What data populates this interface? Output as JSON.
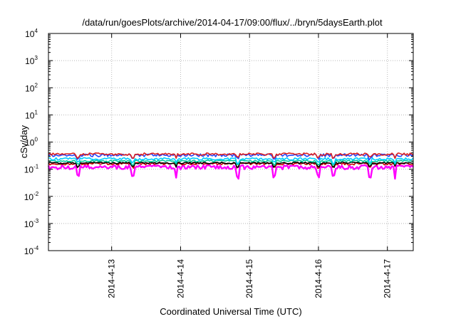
{
  "chart_data": {
    "type": "line",
    "title": "/data/run/goesPlots/archive/2014-04-17/09:00/flux/../bryn/5daysEarth.plot",
    "xlabel": "Coordinated Universal Time (UTC)",
    "ylabel": "cSv/day",
    "y_scale": "log",
    "ylim": [
      0.0001,
      10000
    ],
    "xlim": [
      "2014-04-12T02:00",
      "2014-04-17T09:00"
    ],
    "y_ticks": [
      {
        "base": "10",
        "exp": "-4",
        "value": 0.0001
      },
      {
        "base": "10",
        "exp": "-3",
        "value": 0.001
      },
      {
        "base": "10",
        "exp": "-2",
        "value": 0.01
      },
      {
        "base": "10",
        "exp": "-1",
        "value": 0.1
      },
      {
        "base": "10",
        "exp": "0",
        "value": 1
      },
      {
        "base": "10",
        "exp": "1",
        "value": 10
      },
      {
        "base": "10",
        "exp": "2",
        "value": 100
      },
      {
        "base": "10",
        "exp": "3",
        "value": 1000
      },
      {
        "base": "10",
        "exp": "4",
        "value": 10000
      }
    ],
    "x_ticks": [
      {
        "label": "2014-4-13",
        "date": "2014-04-13T00:00"
      },
      {
        "label": "2014-4-14",
        "date": "2014-04-14T00:00"
      },
      {
        "label": "2014-4-15",
        "date": "2014-04-15T00:00"
      },
      {
        "label": "2014-4-16",
        "date": "2014-04-16T00:00"
      },
      {
        "label": "2014-4-17",
        "date": "2014-04-17T00:00"
      }
    ],
    "grid": true,
    "series": [
      {
        "color": "#ff00ff",
        "level": 0.12,
        "variation": 0.18
      },
      {
        "color": "#cc0000",
        "level": 0.16,
        "variation": 0.1
      },
      {
        "color": "#000000",
        "level": 0.17,
        "variation": 0.08
      },
      {
        "color": "#00cc99",
        "level": 0.2,
        "variation": 0.08
      },
      {
        "color": "#00ccff",
        "level": 0.24,
        "variation": 0.1
      },
      {
        "color": "#2244ff",
        "level": 0.33,
        "variation": 0.12
      },
      {
        "color": "#dd2222",
        "level": 0.36,
        "variation": 0.1
      }
    ]
  }
}
